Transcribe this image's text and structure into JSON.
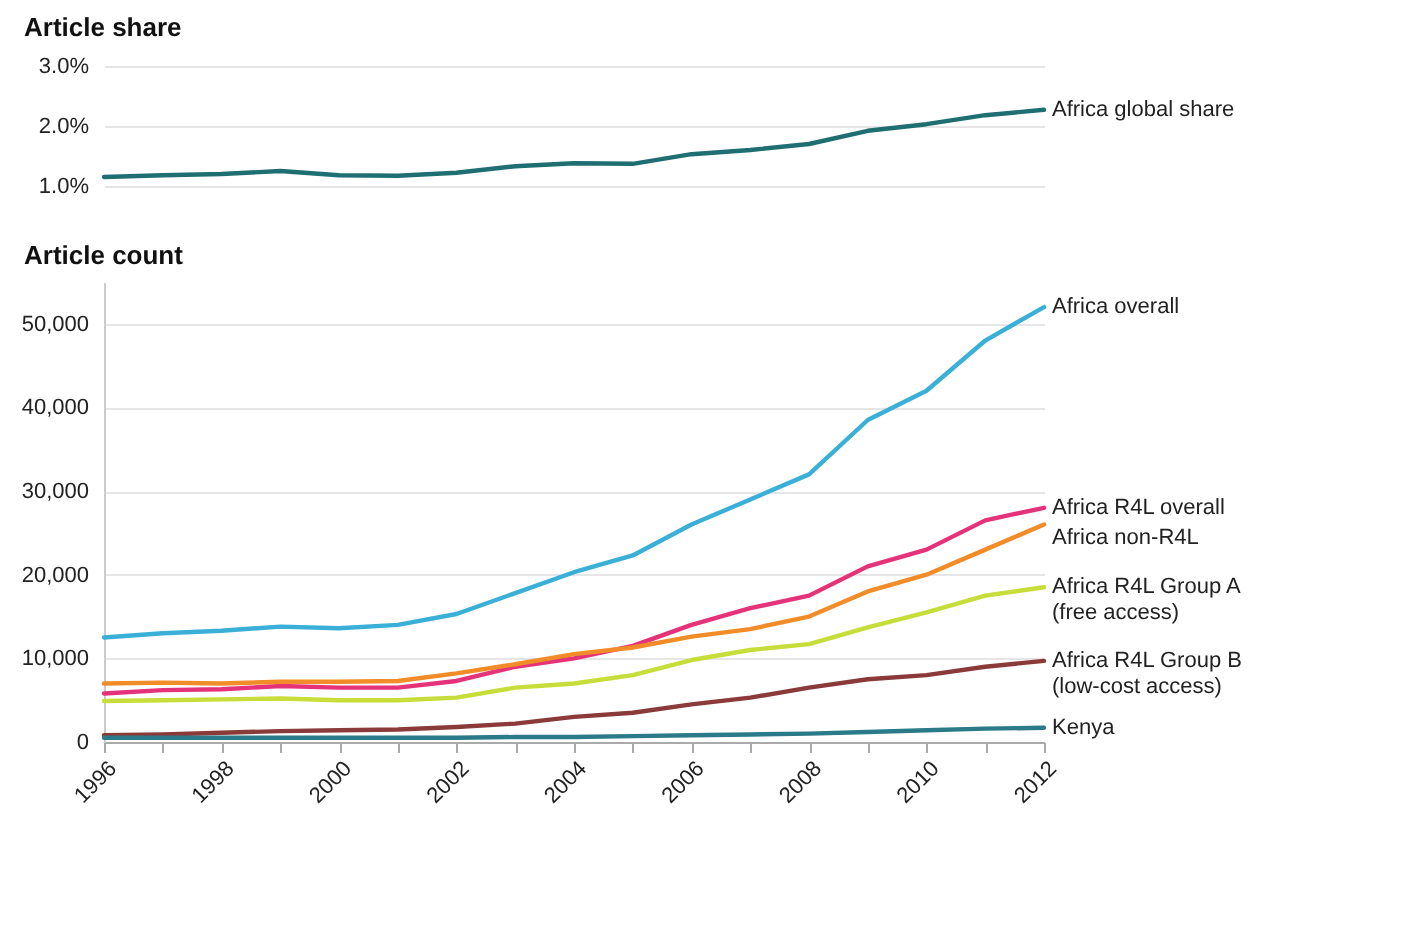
{
  "chart_data": [
    {
      "type": "line",
      "title": "Article share",
      "x": [
        1996,
        1997,
        1998,
        1999,
        2000,
        2001,
        2002,
        2003,
        2004,
        2005,
        2006,
        2007,
        2008,
        2009,
        2010,
        2011,
        2012
      ],
      "xlim": [
        1996,
        2012
      ],
      "ylim": [
        1.0,
        3.0
      ],
      "yticks": [
        {
          "value": 1,
          "label": "1.0%"
        },
        {
          "value": 2,
          "label": "2.0%"
        },
        {
          "value": 3,
          "label": "3.0%"
        }
      ],
      "grid": "y",
      "tick_labels": "y",
      "series": [
        {
          "name": "Africa global share",
          "color": "#1f6e72",
          "values": [
            1.15,
            1.18,
            1.2,
            1.25,
            1.18,
            1.17,
            1.22,
            1.33,
            1.38,
            1.37,
            1.53,
            1.6,
            1.7,
            1.92,
            2.03,
            2.18,
            2.27
          ]
        }
      ]
    },
    {
      "type": "line",
      "title": "Article count",
      "x": [
        1996,
        1997,
        1998,
        1999,
        2000,
        2001,
        2002,
        2003,
        2004,
        2005,
        2006,
        2007,
        2008,
        2009,
        2010,
        2011,
        2012
      ],
      "xlim": [
        1996,
        2012
      ],
      "xticks": [
        1996,
        {
          "value": 1997,
          "label": null
        },
        1998,
        {
          "value": 1999,
          "label": null
        },
        2000,
        {
          "value": 2001,
          "label": null
        },
        2002,
        {
          "value": 2003,
          "label": null
        },
        2004,
        {
          "value": 2005,
          "label": null
        },
        2006,
        {
          "value": 2007,
          "label": null
        },
        2008,
        {
          "value": 2009,
          "label": null
        },
        2010,
        {
          "value": 2011,
          "label": null
        },
        2012
      ],
      "ylim": [
        0,
        55000
      ],
      "yticks": [
        0,
        {
          "value": 10000,
          "label": "10,000"
        },
        {
          "value": 20000,
          "label": "20,000"
        },
        {
          "value": 30000,
          "label": "30,000"
        },
        {
          "value": 40000,
          "label": "40,000"
        },
        {
          "value": 50000,
          "label": "50,000"
        }
      ],
      "grid": "y",
      "series": [
        {
          "name": "Africa overall",
          "color": "#3ab0d8",
          "values": [
            12500,
            13000,
            13300,
            13800,
            13600,
            14000,
            15300,
            17800,
            20300,
            22300,
            26000,
            29000,
            32000,
            38500,
            42000,
            48000,
            52000
          ]
        },
        {
          "name": "Africa R4L overall",
          "color": "#e5337a",
          "values": [
            5800,
            6200,
            6300,
            6700,
            6500,
            6500,
            7300,
            9000,
            10000,
            11500,
            14000,
            16000,
            17500,
            21000,
            23000,
            26500,
            28000
          ]
        },
        {
          "name": "Africa non-R4L",
          "color": "#f28c28",
          "values": [
            7000,
            7100,
            7000,
            7200,
            7200,
            7300,
            8200,
            9300,
            10500,
            11300,
            12600,
            13500,
            15000,
            18000,
            20000,
            23000,
            26000
          ]
        },
        {
          "name": "Africa R4L Group A\n(free access)",
          "color": "#c6dd3a",
          "values": [
            4900,
            5000,
            5100,
            5200,
            5000,
            5000,
            5300,
            6500,
            7000,
            8000,
            9800,
            11000,
            11700,
            13700,
            15500,
            17500,
            18500
          ]
        },
        {
          "name": "Africa R4L Group B\n(low-cost access)",
          "color": "#8b3a3a",
          "values": [
            800,
            900,
            1100,
            1300,
            1400,
            1500,
            1800,
            2200,
            3000,
            3500,
            4500,
            5300,
            6500,
            7500,
            8000,
            9000,
            9700
          ]
        },
        {
          "name": "Kenya",
          "color": "#2a7a8a",
          "values": [
            500,
            500,
            500,
            500,
            500,
            500,
            500,
            600,
            600,
            700,
            800,
            900,
            1000,
            1200,
            1400,
            1600,
            1700
          ]
        }
      ]
    }
  ]
}
